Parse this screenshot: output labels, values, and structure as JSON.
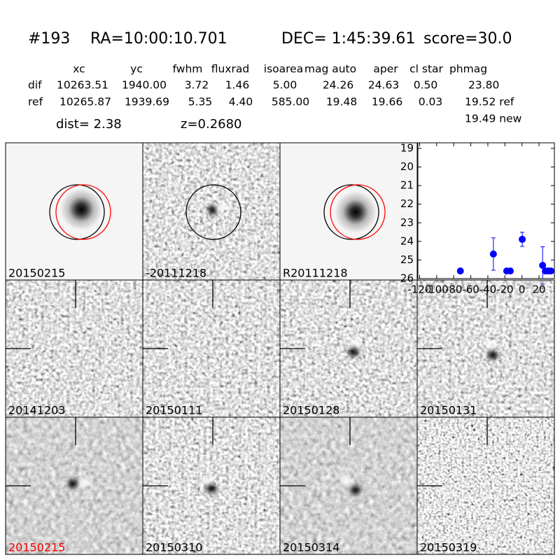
{
  "header": {
    "id": "#193",
    "ra": "RA=10:00:10.701",
    "dec": "DEC= 1:45:39.61",
    "score": "score=30.0"
  },
  "table": {
    "columns": [
      "xc",
      "yc",
      "fwhm",
      "fluxrad",
      "isoarea",
      "mag auto",
      "aper",
      "cl star",
      "phmag"
    ],
    "rows": [
      {
        "name": "dif",
        "cells": [
          "10263.51",
          "1940.00",
          "3.72",
          "1.46",
          "5.00",
          "24.26",
          "24.63",
          "0.50",
          "23.80"
        ]
      },
      {
        "name": "ref",
        "cells": [
          "10265.87",
          "1939.69",
          "5.35",
          "4.40",
          "585.00",
          "19.48",
          "19.66",
          "0.03",
          "19.52 ref"
        ]
      }
    ],
    "extra": "19.49 new"
  },
  "dist": "dist=  2.38",
  "z": "z=0.2680",
  "panels": [
    {
      "label": "20150215",
      "color": "#000000"
    },
    {
      "label": "-20111218",
      "color": "#000000"
    },
    {
      "label": "R20111218",
      "color": "#000000"
    },
    {
      "label": "20141203",
      "color": "#000000"
    },
    {
      "label": "20150111",
      "color": "#000000"
    },
    {
      "label": "20150128",
      "color": "#000000"
    },
    {
      "label": "20150131",
      "color": "#000000"
    },
    {
      "label": "20150215",
      "color": "#ff0000"
    },
    {
      "label": "20150310",
      "color": "#000000"
    },
    {
      "label": "20150314",
      "color": "#000000"
    },
    {
      "label": "20150319",
      "color": "#000000"
    }
  ],
  "chart_data": {
    "type": "scatter",
    "color": "#0000ff",
    "x": [
      -72.2,
      -33.5,
      -17.9,
      -13.7,
      0.3,
      24.2,
      27.4,
      30.7,
      34
    ],
    "values": [
      25.59,
      24.68,
      25.59,
      25.59,
      23.89,
      25.29,
      25.59,
      25.59,
      25.59
    ],
    "errors": [
      0.1,
      0.87,
      0.1,
      0.1,
      0.38,
      1.0,
      0.1,
      0.1,
      0.1
    ],
    "xlim": [
      -122,
      38
    ],
    "ylim": [
      26,
      18.7
    ],
    "xticks": [
      -120,
      -100,
      -80,
      -60,
      -40,
      -20,
      0,
      20
    ],
    "yticks": [
      19,
      20,
      21,
      22,
      23,
      24,
      25,
      26
    ]
  }
}
